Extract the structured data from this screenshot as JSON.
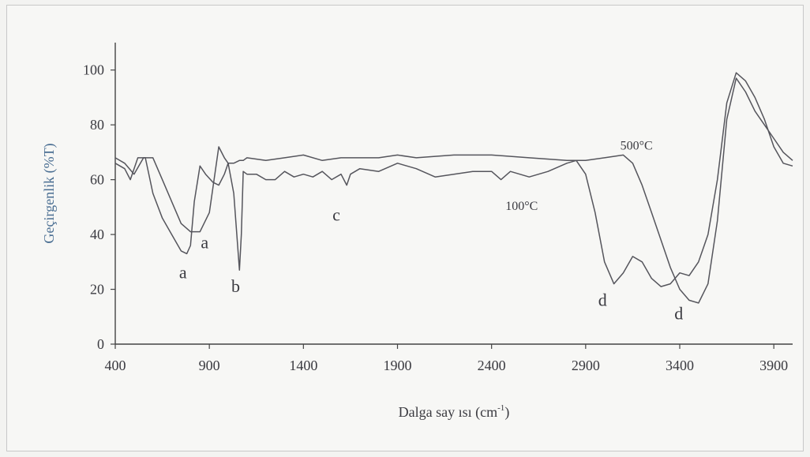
{
  "chart_data": {
    "type": "line",
    "title": "",
    "xlabel": "Dalga say ısı (cm",
    "xlabel_sup": "-1",
    "xlabel_end": ")",
    "ylabel": "Geçirgenlik (%T)",
    "xlim": [
      400,
      4000
    ],
    "ylim": [
      0,
      110
    ],
    "xticks": [
      400,
      900,
      1400,
      1900,
      2400,
      2900,
      3400,
      3900
    ],
    "yticks": [
      0,
      20,
      40,
      60,
      80,
      100
    ],
    "grid": false,
    "series": [
      {
        "name": "100°C",
        "color": "#55555c",
        "x": [
          400,
          450,
          480,
          520,
          560,
          600,
          650,
          700,
          750,
          780,
          800,
          820,
          850,
          880,
          920,
          950,
          980,
          1000,
          1030,
          1060,
          1070,
          1080,
          1100,
          1150,
          1200,
          1250,
          1300,
          1350,
          1400,
          1450,
          1500,
          1550,
          1600,
          1630,
          1650,
          1700,
          1800,
          1900,
          2000,
          2100,
          2200,
          2300,
          2400,
          2450,
          2500,
          2600,
          2700,
          2800,
          2850,
          2900,
          2950,
          3000,
          3050,
          3100,
          3150,
          3200,
          3250,
          3300,
          3350,
          3400,
          3450,
          3500,
          3550,
          3600,
          3650,
          3700,
          3750,
          3800,
          3850,
          3900,
          3950,
          4000
        ],
        "y": [
          66,
          64,
          60,
          68,
          68,
          55,
          46,
          40,
          34,
          33,
          36,
          52,
          65,
          62,
          59,
          58,
          62,
          66,
          55,
          27,
          40,
          63,
          62,
          62,
          60,
          60,
          63,
          61,
          62,
          61,
          63,
          60,
          62,
          58,
          62,
          64,
          63,
          66,
          64,
          61,
          62,
          63,
          63,
          60,
          63,
          61,
          63,
          66,
          67,
          62,
          48,
          30,
          22,
          26,
          32,
          30,
          24,
          21,
          22,
          26,
          25,
          30,
          40,
          60,
          88,
          99,
          96,
          90,
          82,
          72,
          66,
          65
        ]
      },
      {
        "name": "500°C",
        "color": "#55555c",
        "x": [
          400,
          450,
          500,
          550,
          600,
          650,
          700,
          750,
          800,
          850,
          900,
          950,
          980,
          1000,
          1030,
          1060,
          1070,
          1080,
          1100,
          1200,
          1300,
          1400,
          1500,
          1600,
          1700,
          1800,
          1900,
          2000,
          2200,
          2400,
          2600,
          2800,
          2900,
          3000,
          3100,
          3150,
          3200,
          3250,
          3300,
          3350,
          3400,
          3450,
          3500,
          3550,
          3600,
          3650,
          3700,
          3750,
          3800,
          3850,
          3900,
          3950,
          4000
        ],
        "y": [
          68,
          66,
          62,
          68,
          68,
          60,
          52,
          44,
          41,
          41,
          48,
          72,
          68,
          66,
          66,
          67,
          67,
          67,
          68,
          67,
          68,
          69,
          67,
          68,
          68,
          68,
          69,
          68,
          69,
          69,
          68,
          67,
          67,
          68,
          69,
          66,
          58,
          48,
          38,
          28,
          20,
          16,
          15,
          22,
          45,
          82,
          97,
          92,
          85,
          80,
          75,
          70,
          67
        ]
      }
    ],
    "annotations": [
      {
        "text": "a",
        "x": 760,
        "y": 24
      },
      {
        "text": "a",
        "x": 875,
        "y": 35
      },
      {
        "text": "b",
        "x": 1040,
        "y": 19
      },
      {
        "text": "c",
        "x": 1575,
        "y": 45
      },
      {
        "text": "d",
        "x": 2990,
        "y": 14
      },
      {
        "text": "d",
        "x": 3395,
        "y": 9
      },
      {
        "text": "100°C",
        "x": 2560,
        "y": 49,
        "small": true
      },
      {
        "text": "500°C",
        "x": 3170,
        "y": 71,
        "small": true
      }
    ]
  }
}
